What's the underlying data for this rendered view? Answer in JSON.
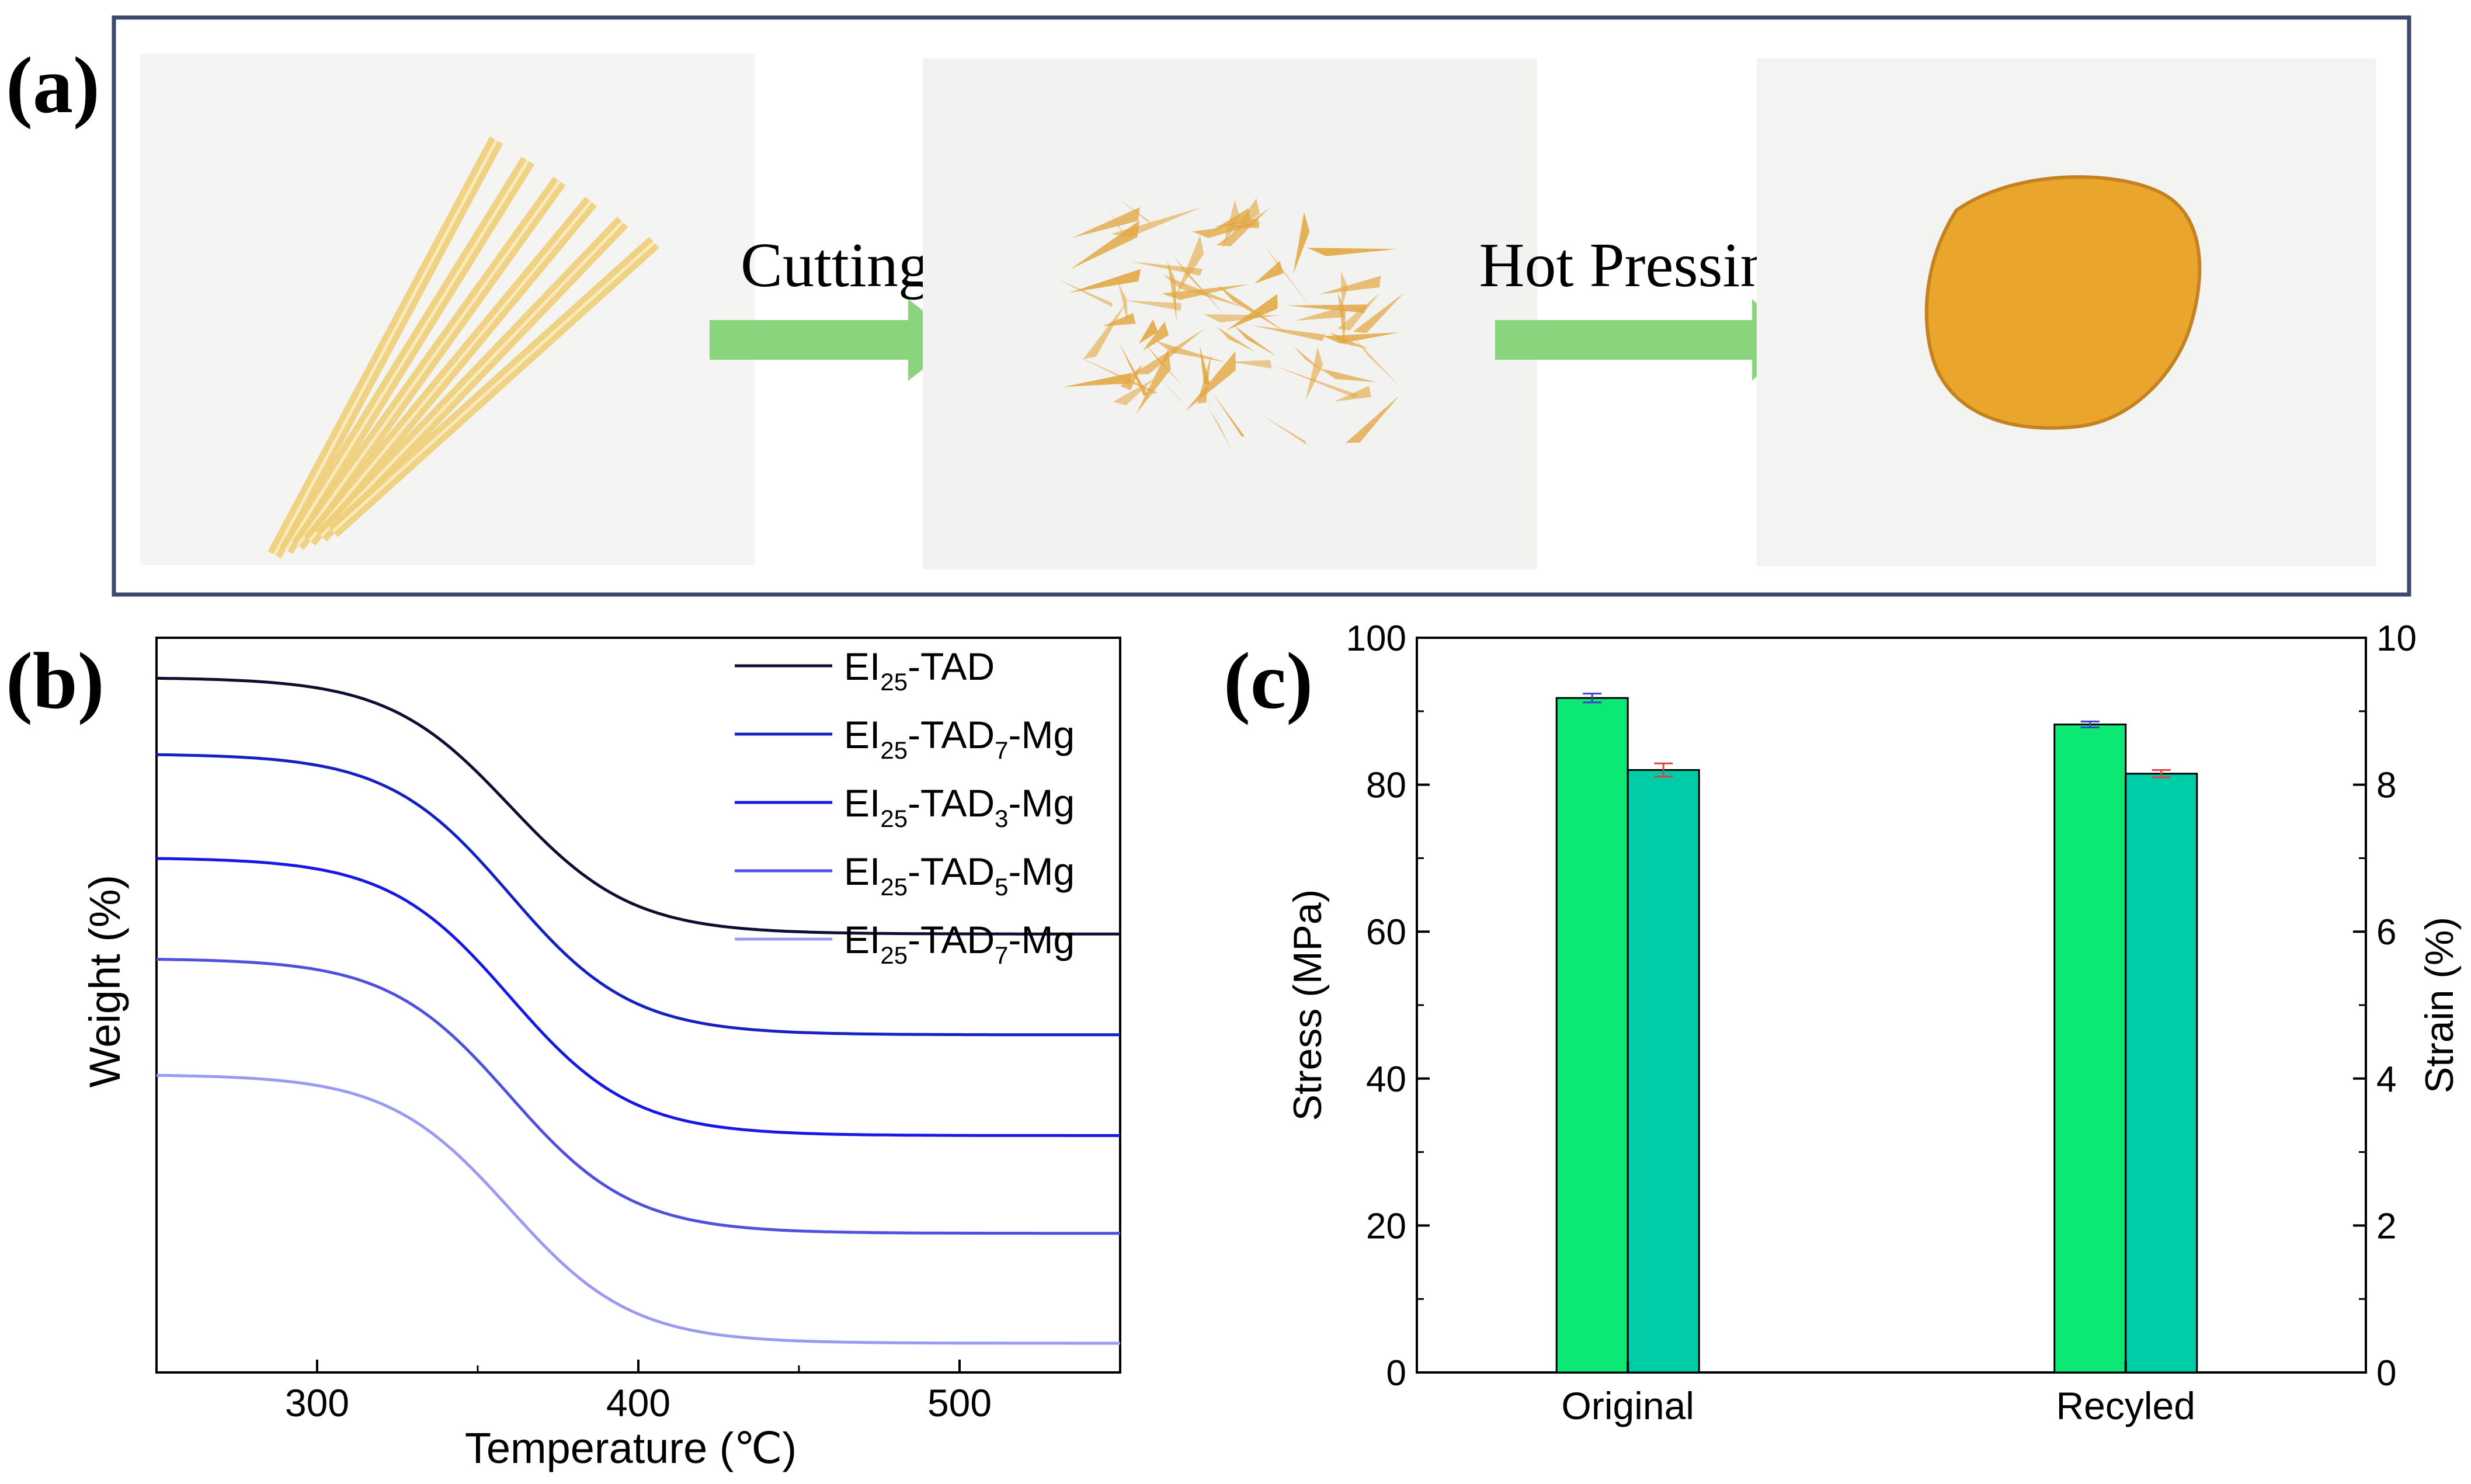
{
  "panel_a": {
    "label": "(a)",
    "step1": "Cutting",
    "step2": "Hot Pressing",
    "colors": {
      "border": "#3d4a6d",
      "arrow": "#8bd47e",
      "film": "#f0cf7a",
      "flake": "#e2a640",
      "disc": "#e9a52c"
    }
  },
  "chart_data": [
    {
      "panel": "(b)",
      "type": "line",
      "xlabel": "Temperature (℃)",
      "ylabel": "Weight (%)",
      "xlim": [
        250,
        550
      ],
      "xticks": [
        300,
        400,
        500
      ],
      "yticks": [],
      "grid": false,
      "legend_position": "top-right",
      "series": [
        {
          "name_base": "EI",
          "name_sub": "25",
          "name_mid": "-TAD",
          "name_sub2": "",
          "name_end": "",
          "color": "#0b1030",
          "start": 0.96,
          "end": 0.54
        },
        {
          "name_base": "EI",
          "name_sub": "25",
          "name_mid": "-TAD",
          "name_sub2": "7",
          "name_end": "-Mg",
          "color": "#1720c0",
          "start": 0.835,
          "end": 0.375
        },
        {
          "name_base": "EI",
          "name_sub": "25",
          "name_mid": "-TAD",
          "name_sub2": "3",
          "name_end": "-Mg",
          "color": "#1818e6",
          "start": 0.665,
          "end": 0.21
        },
        {
          "name_base": "EI",
          "name_sub": "25",
          "name_mid": "-TAD",
          "name_sub2": "5",
          "name_end": "-Mg",
          "color": "#5050e0",
          "start": 0.5,
          "end": 0.05
        },
        {
          "name_base": "EI",
          "name_sub": "25",
          "name_mid": "-TAD",
          "name_sub2": "7",
          "name_end": "-Mg",
          "color": "#9a9af0",
          "start": 0.31,
          "end": -0.13
        }
      ],
      "x_onset": 360
    },
    {
      "panel": "(c)",
      "type": "bar",
      "categories": [
        "Original",
        "Recyled"
      ],
      "ylabel": "Stress (MPa)",
      "y2label": "Strain (%)",
      "ylim": [
        0,
        100
      ],
      "y2lim": [
        0,
        10
      ],
      "yticks": [
        0,
        20,
        40,
        60,
        80,
        100
      ],
      "y2ticks": [
        0,
        2,
        4,
        6,
        8,
        10
      ],
      "series": [
        {
          "axis": "left",
          "values": [
            91.8,
            88.2
          ],
          "errors": [
            0.6,
            0.4
          ],
          "color": "#0be874",
          "error_color": "#4040d0"
        },
        {
          "axis": "right",
          "values": [
            8.2,
            8.15
          ],
          "errors": [
            0.09,
            0.05
          ],
          "color": "#00cca8",
          "error_color": "#e04040"
        }
      ]
    }
  ]
}
